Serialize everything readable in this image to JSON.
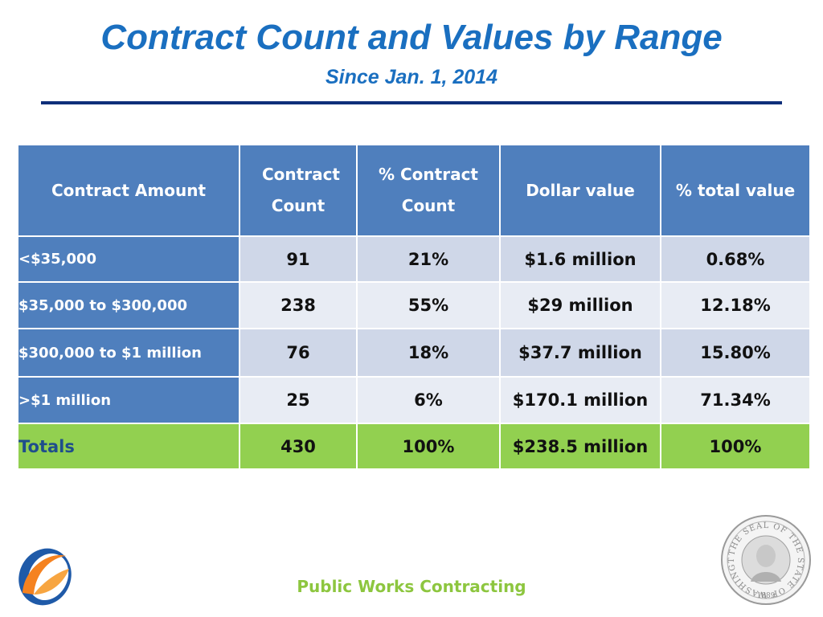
{
  "header": {
    "title": "Contract Count and Values by Range",
    "subtitle": "Since Jan. 1, 2014"
  },
  "table": {
    "columns": [
      "Contract Amount",
      "Contract Count",
      "% Contract Count",
      "Dollar value",
      "% total value"
    ],
    "rows": [
      {
        "label": "<$35,000",
        "count": "91",
        "pct_count": "21%",
        "dollar": "$1.6 million",
        "pct_value": "0.68%"
      },
      {
        "label": "$35,000 to $300,000",
        "count": "238",
        "pct_count": "55%",
        "dollar": "$29 million",
        "pct_value": "12.18%"
      },
      {
        "label": "$300,000  to $1 million",
        "count": "76",
        "pct_count": "18%",
        "dollar": "$37.7 million",
        "pct_value": "15.80%"
      },
      {
        "label": ">$1 million",
        "count": "25",
        "pct_count": "6%",
        "dollar": "$170.1 million",
        "pct_value": "71.34%"
      }
    ],
    "totals": {
      "label": "Totals",
      "count": "430",
      "pct_count": "100%",
      "dollar": "$238.5 million",
      "pct_value": "100%"
    }
  },
  "footer": {
    "text": "Public Works Contracting",
    "seal_text_top": "THE SEAL OF THE STATE OF WASHINGTON",
    "seal_year": "1889"
  },
  "colors": {
    "title": "#1a6fc0",
    "header_fill": "#4f7fbd",
    "row_odd": "#cfd7e8",
    "row_even": "#e8ecf4",
    "totals_fill": "#92d050",
    "footer_text": "#8dc63f"
  },
  "icons": [
    "logo-icon",
    "state-seal-icon"
  ]
}
